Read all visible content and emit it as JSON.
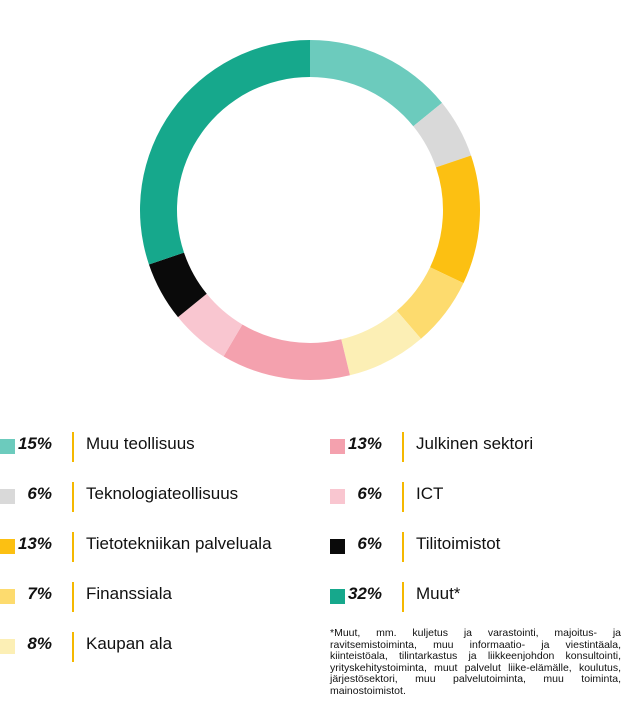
{
  "chart_data": {
    "type": "pie",
    "donut": true,
    "title": "",
    "categories": [
      "Muu teollisuus",
      "Teknologiateollisuus",
      "Tietotekniikan palveluala",
      "Finanssiala",
      "Kaupan ala",
      "Julkinen sektori",
      "ICT",
      "Tilitoimistot",
      "Muut*"
    ],
    "values": [
      15,
      6,
      13,
      7,
      8,
      13,
      6,
      6,
      32
    ],
    "colors": [
      "#6ccbbd",
      "#d9d9d9",
      "#fcc012",
      "#fddb6e",
      "#fcefb5",
      "#f4a1ae",
      "#f9c6d0",
      "#0a0a0a",
      "#16a88c"
    ]
  },
  "legend": {
    "left": [
      {
        "pct": "15%",
        "label": "Muu teollisuus",
        "color": "#6ccbbd"
      },
      {
        "pct": "6%",
        "label": "Teknologiateollisuus",
        "color": "#d9d9d9"
      },
      {
        "pct": "13%",
        "label": "Tietotekniikan palveluala",
        "color": "#fcc012"
      },
      {
        "pct": "7%",
        "label": "Finanssiala",
        "color": "#fddb6e"
      },
      {
        "pct": "8%",
        "label": "Kaupan ala",
        "color": "#fcefb5"
      }
    ],
    "right": [
      {
        "pct": "13%",
        "label": "Julkinen sektori",
        "color": "#f4a1ae"
      },
      {
        "pct": "6%",
        "label": "ICT",
        "color": "#f9c6d0"
      },
      {
        "pct": "6%",
        "label": "Tilitoimistot",
        "color": "#0a0a0a"
      },
      {
        "pct": "32%",
        "label": "Muut*",
        "color": "#16a88c"
      }
    ]
  },
  "footnote": "*Muut, mm. kuljetus ja varastointi, majoitus- ja ravitsemistoiminta, muu informaatio- ja viestintäala, kiinteistöala, tilintarkastus ja liikkeenjohdon konsultointi, yrityskehitystoiminta, muut palvelut liike-elämälle, koulutus, järjestösektori, muu palvelutoiminta, muu toiminta, mainostoimistot."
}
